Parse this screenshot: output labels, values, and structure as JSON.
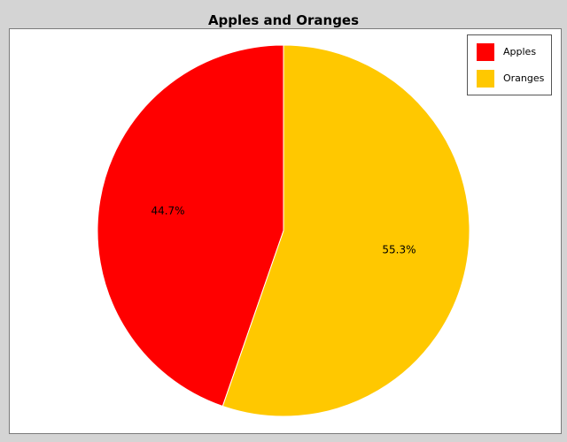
{
  "colors": {
    "window_background": "#d4d4d4",
    "plot_background": "#ffffff",
    "slice_outline": "#ffffff"
  },
  "chart_data": {
    "type": "pie",
    "title": "Apples and Oranges",
    "legend_position": "top-right",
    "start_angle_deg": 90,
    "direction": "counterclockwise",
    "slices": [
      {
        "name": "Apples",
        "value": 44.7,
        "label": "44.7%",
        "color": "#ff0000"
      },
      {
        "name": "Oranges",
        "value": 55.3,
        "label": "55.3%",
        "color": "#ffc800"
      }
    ]
  }
}
